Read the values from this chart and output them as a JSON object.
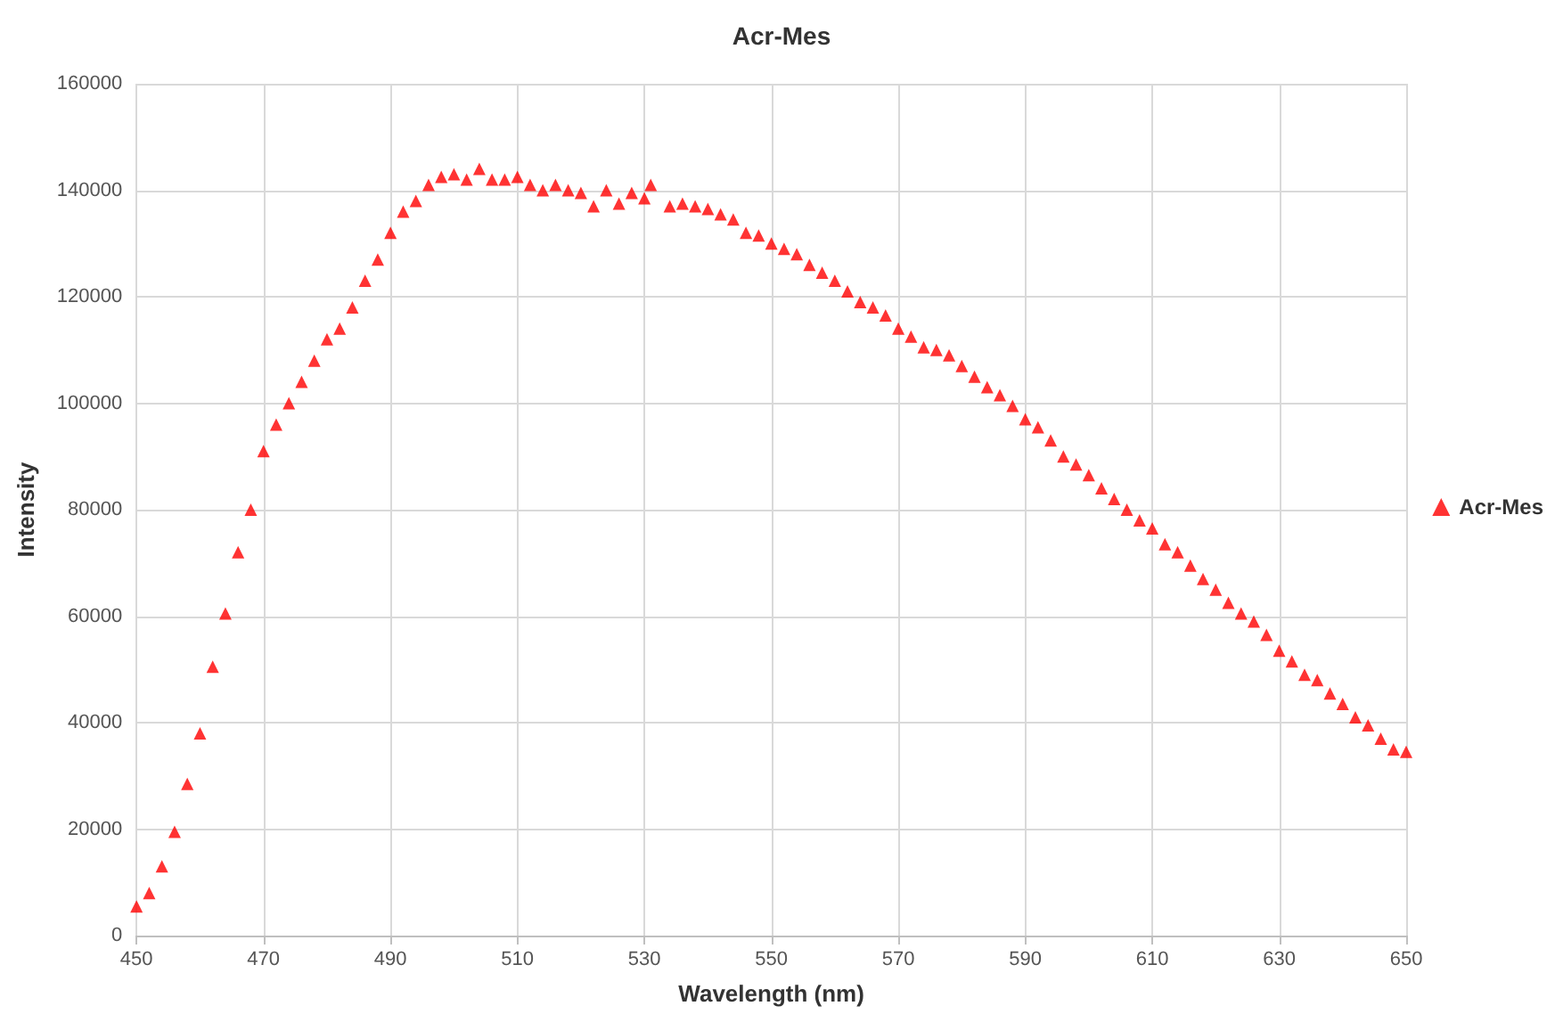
{
  "chart_data": {
    "type": "scatter",
    "title": "Acr-Mes",
    "xlabel": "Wavelength (nm)",
    "ylabel": "Intensity",
    "xlim": [
      450,
      650
    ],
    "xticks": [
      450,
      470,
      490,
      510,
      530,
      550,
      570,
      590,
      610,
      630,
      650
    ],
    "ylim": [
      0,
      160000
    ],
    "yticks": [
      0,
      20000,
      40000,
      60000,
      80000,
      100000,
      120000,
      140000,
      160000
    ],
    "grid": true,
    "legend": "right",
    "marker": "triangle",
    "x": [
      450,
      452,
      454,
      456,
      458,
      460,
      462,
      464,
      466,
      468,
      470,
      472,
      474,
      476,
      478,
      480,
      482,
      484,
      486,
      488,
      490,
      492,
      494,
      496,
      498,
      500,
      502,
      504,
      506,
      508,
      510,
      512,
      514,
      516,
      518,
      520,
      522,
      524,
      526,
      528,
      530,
      531,
      534,
      536,
      538,
      540,
      542,
      544,
      546,
      548,
      550,
      552,
      554,
      556,
      558,
      560,
      562,
      564,
      566,
      568,
      570,
      572,
      574,
      576,
      578,
      580,
      582,
      584,
      586,
      588,
      590,
      592,
      594,
      596,
      598,
      600,
      602,
      604,
      606,
      608,
      610,
      612,
      614,
      616,
      618,
      620,
      622,
      624,
      626,
      628,
      630,
      632,
      634,
      636,
      638,
      640,
      642,
      644,
      646,
      648,
      650
    ],
    "series": [
      {
        "name": "Acr-Mes",
        "color": "#ff0000",
        "values": [
          5500,
          8000,
          13000,
          19500,
          28500,
          38000,
          50500,
          60500,
          72000,
          80000,
          91000,
          96000,
          100000,
          104000,
          108000,
          112000,
          114000,
          118000,
          123000,
          127000,
          132000,
          136000,
          138000,
          141000,
          142500,
          143000,
          142000,
          144000,
          142000,
          142000,
          142500,
          141000,
          140000,
          141000,
          140000,
          139500,
          137000,
          140000,
          137500,
          139500,
          138500,
          141000,
          137000,
          137500,
          137000,
          136500,
          135500,
          134500,
          132000,
          131500,
          130000,
          129000,
          128000,
          126000,
          124500,
          123000,
          121000,
          119000,
          118000,
          116500,
          114000,
          112500,
          110500,
          110000,
          109000,
          107000,
          105000,
          103000,
          101500,
          99500,
          97000,
          95500,
          93000,
          90000,
          88500,
          86500,
          84000,
          82000,
          80000,
          78000,
          76500,
          73500,
          72000,
          69500,
          67000,
          65000,
          62500,
          60500,
          59000,
          56500,
          53500,
          51500,
          49000,
          48000,
          45500,
          43500,
          41000,
          39500,
          37000,
          35000,
          34500
        ]
      }
    ]
  }
}
